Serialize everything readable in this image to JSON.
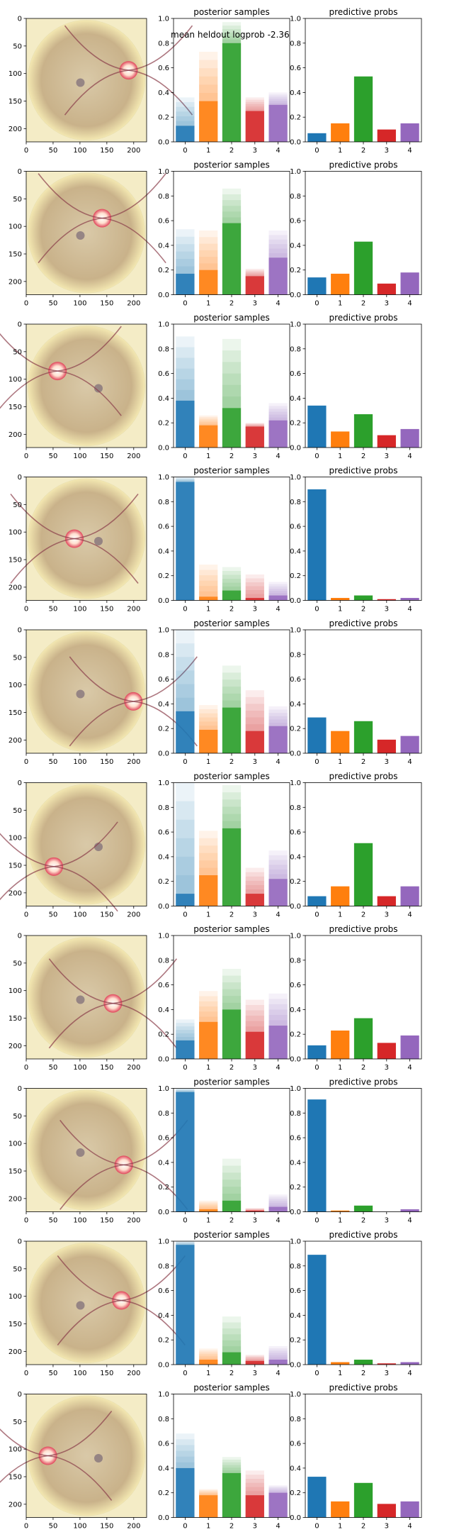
{
  "figure": {
    "annotation": "mean heldout logprob -2.36",
    "image_axes": {
      "xticks": [
        0,
        50,
        100,
        150,
        200
      ],
      "yticks": [
        0,
        50,
        100,
        150,
        200
      ],
      "xlim": [
        0,
        224
      ],
      "ylim": [
        224,
        0
      ]
    },
    "bar_axes": {
      "categories": [
        "0",
        "1",
        "2",
        "3",
        "4"
      ],
      "ylim": [
        0,
        1
      ],
      "yticks": [
        "0.0",
        "0.2",
        "0.4",
        "0.6",
        "0.8",
        "1.0"
      ]
    }
  },
  "colors": [
    "#1f77b4",
    "#ff7f0e",
    "#2ca02c",
    "#d62728",
    "#9467bd"
  ],
  "icons": [
    "retina-fundus-image"
  ],
  "chart_data": [
    {
      "row": 1,
      "type": "bar",
      "posterior": {
        "title": "posterior samples",
        "categories": [
          "0",
          "1",
          "2",
          "3",
          "4"
        ],
        "max": [
          0.36,
          0.73,
          0.97,
          0.36,
          0.4
        ],
        "solid": [
          0.13,
          0.33,
          0.8,
          0.25,
          0.3
        ]
      },
      "predictive": {
        "title": "predictive probs",
        "categories": [
          "0",
          "1",
          "2",
          "3",
          "4"
        ],
        "values": [
          0.07,
          0.15,
          0.53,
          0.1,
          0.15
        ]
      }
    },
    {
      "row": 2,
      "type": "bar",
      "posterior": {
        "title": "posterior samples",
        "categories": [
          "0",
          "1",
          "2",
          "3",
          "4"
        ],
        "max": [
          0.53,
          0.52,
          0.86,
          0.21,
          0.52
        ],
        "solid": [
          0.17,
          0.2,
          0.58,
          0.15,
          0.3
        ]
      },
      "predictive": {
        "title": "predictive probs",
        "categories": [
          "0",
          "1",
          "2",
          "3",
          "4"
        ],
        "values": [
          0.14,
          0.17,
          0.43,
          0.09,
          0.18
        ]
      }
    },
    {
      "row": 3,
      "type": "bar",
      "posterior": {
        "title": "posterior samples",
        "categories": [
          "0",
          "1",
          "2",
          "3",
          "4"
        ],
        "max": [
          0.9,
          0.26,
          0.88,
          0.2,
          0.36
        ],
        "solid": [
          0.38,
          0.18,
          0.32,
          0.17,
          0.22
        ]
      },
      "predictive": {
        "title": "predictive probs",
        "categories": [
          "0",
          "1",
          "2",
          "3",
          "4"
        ],
        "values": [
          0.34,
          0.13,
          0.27,
          0.1,
          0.15
        ]
      }
    },
    {
      "row": 4,
      "type": "bar",
      "posterior": {
        "title": "posterior samples",
        "categories": [
          "0",
          "1",
          "2",
          "3",
          "4"
        ],
        "max": [
          1.0,
          0.29,
          0.27,
          0.21,
          0.15
        ],
        "solid": [
          0.96,
          0.03,
          0.08,
          0.02,
          0.04
        ]
      },
      "predictive": {
        "title": "predictive probs",
        "categories": [
          "0",
          "1",
          "2",
          "3",
          "4"
        ],
        "values": [
          0.9,
          0.02,
          0.04,
          0.01,
          0.02
        ]
      }
    },
    {
      "row": 5,
      "type": "bar",
      "posterior": {
        "title": "posterior samples",
        "categories": [
          "0",
          "1",
          "2",
          "3",
          "4"
        ],
        "max": [
          1.0,
          0.39,
          0.71,
          0.51,
          0.38
        ],
        "solid": [
          0.34,
          0.19,
          0.37,
          0.18,
          0.22
        ]
      },
      "predictive": {
        "title": "predictive probs",
        "categories": [
          "0",
          "1",
          "2",
          "3",
          "4"
        ],
        "values": [
          0.29,
          0.18,
          0.26,
          0.11,
          0.14
        ]
      }
    },
    {
      "row": 6,
      "type": "bar",
      "posterior": {
        "title": "posterior samples",
        "categories": [
          "0",
          "1",
          "2",
          "3",
          "4"
        ],
        "max": [
          1.0,
          0.61,
          0.98,
          0.31,
          0.45
        ],
        "solid": [
          0.1,
          0.25,
          0.63,
          0.1,
          0.22
        ]
      },
      "predictive": {
        "title": "predictive probs",
        "categories": [
          "0",
          "1",
          "2",
          "3",
          "4"
        ],
        "values": [
          0.08,
          0.16,
          0.51,
          0.08,
          0.16
        ]
      }
    },
    {
      "row": 7,
      "type": "bar",
      "posterior": {
        "title": "posterior samples",
        "categories": [
          "0",
          "1",
          "2",
          "3",
          "4"
        ],
        "max": [
          0.32,
          0.55,
          0.73,
          0.48,
          0.53
        ],
        "solid": [
          0.15,
          0.3,
          0.4,
          0.22,
          0.27
        ]
      },
      "predictive": {
        "title": "predictive probs",
        "categories": [
          "0",
          "1",
          "2",
          "3",
          "4"
        ],
        "values": [
          0.11,
          0.23,
          0.33,
          0.13,
          0.19
        ]
      }
    },
    {
      "row": 8,
      "type": "bar",
      "posterior": {
        "title": "posterior samples",
        "categories": [
          "0",
          "1",
          "2",
          "3",
          "4"
        ],
        "max": [
          1.0,
          0.09,
          0.43,
          0.03,
          0.14
        ],
        "solid": [
          0.97,
          0.02,
          0.09,
          0.01,
          0.04
        ]
      },
      "predictive": {
        "title": "predictive probs",
        "categories": [
          "0",
          "1",
          "2",
          "3",
          "4"
        ],
        "values": [
          0.91,
          0.01,
          0.05,
          0.0,
          0.02
        ]
      }
    },
    {
      "row": 9,
      "type": "bar",
      "posterior": {
        "title": "posterior samples",
        "categories": [
          "0",
          "1",
          "2",
          "3",
          "4"
        ],
        "max": [
          1.0,
          0.13,
          0.39,
          0.08,
          0.15
        ],
        "solid": [
          0.97,
          0.04,
          0.1,
          0.03,
          0.04
        ]
      },
      "predictive": {
        "title": "predictive probs",
        "categories": [
          "0",
          "1",
          "2",
          "3",
          "4"
        ],
        "values": [
          0.89,
          0.02,
          0.04,
          0.01,
          0.02
        ]
      }
    },
    {
      "row": 10,
      "type": "bar",
      "posterior": {
        "title": "posterior samples",
        "categories": [
          "0",
          "1",
          "2",
          "3",
          "4"
        ],
        "max": [
          0.68,
          0.23,
          0.49,
          0.38,
          0.26
        ],
        "solid": [
          0.4,
          0.18,
          0.36,
          0.18,
          0.2
        ]
      },
      "predictive": {
        "title": "predictive probs",
        "categories": [
          "0",
          "1",
          "2",
          "3",
          "4"
        ],
        "values": [
          0.33,
          0.13,
          0.28,
          0.11,
          0.13
        ]
      }
    }
  ]
}
